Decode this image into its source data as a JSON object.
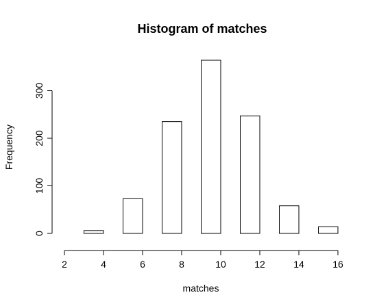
{
  "chart_data": {
    "type": "bar",
    "title": "Histogram of matches",
    "xlabel": "matches",
    "ylabel": "Frequency",
    "bins": [
      {
        "x0": 2,
        "x1": 3,
        "count": 0
      },
      {
        "x0": 3,
        "x1": 4,
        "count": 6
      },
      {
        "x0": 4,
        "x1": 5,
        "count": 0
      },
      {
        "x0": 5,
        "x1": 6,
        "count": 73
      },
      {
        "x0": 6,
        "x1": 7,
        "count": 0
      },
      {
        "x0": 7,
        "x1": 8,
        "count": 235
      },
      {
        "x0": 8,
        "x1": 9,
        "count": 0
      },
      {
        "x0": 9,
        "x1": 10,
        "count": 364
      },
      {
        "x0": 10,
        "x1": 11,
        "count": 0
      },
      {
        "x0": 11,
        "x1": 12,
        "count": 247
      },
      {
        "x0": 12,
        "x1": 13,
        "count": 0
      },
      {
        "x0": 13,
        "x1": 14,
        "count": 58
      },
      {
        "x0": 14,
        "x1": 15,
        "count": 0
      },
      {
        "x0": 15,
        "x1": 16,
        "count": 14
      }
    ],
    "xlim": [
      2,
      16
    ],
    "ylim": [
      0,
      364
    ],
    "x_ticks": [
      2,
      4,
      6,
      8,
      10,
      12,
      14,
      16
    ],
    "y_ticks": [
      0,
      100,
      200,
      300
    ],
    "grid": false,
    "colors": {
      "bar_fill": "#ffffff",
      "bar_stroke": "#000000",
      "axis": "#000000"
    }
  }
}
